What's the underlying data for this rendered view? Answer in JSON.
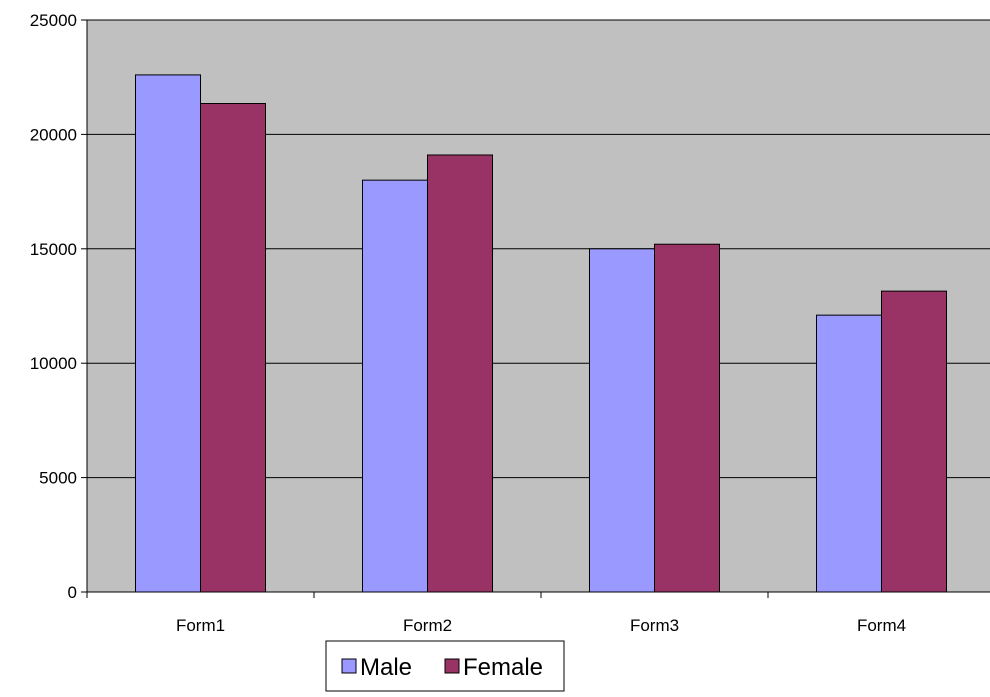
{
  "chart_data": {
    "type": "bar",
    "categories": [
      "Form1",
      "Form2",
      "Form3",
      "Form4"
    ],
    "series": [
      {
        "name": "Male",
        "values": [
          22600,
          18000,
          15000,
          12100
        ],
        "color": "#9999ff"
      },
      {
        "name": "Female",
        "values": [
          21350,
          19100,
          15200,
          13150
        ],
        "color": "#993366"
      }
    ],
    "ylim": [
      0,
      25000
    ],
    "yticks": [
      0,
      5000,
      10000,
      15000,
      20000,
      25000
    ],
    "ytick_labels": [
      "0",
      "5000",
      "10000",
      "15000",
      "20000",
      "25000"
    ],
    "grid": true,
    "legend_position": "bottom",
    "plot_background": "#c0c0c0",
    "title": "",
    "xlabel": "",
    "ylabel": ""
  }
}
